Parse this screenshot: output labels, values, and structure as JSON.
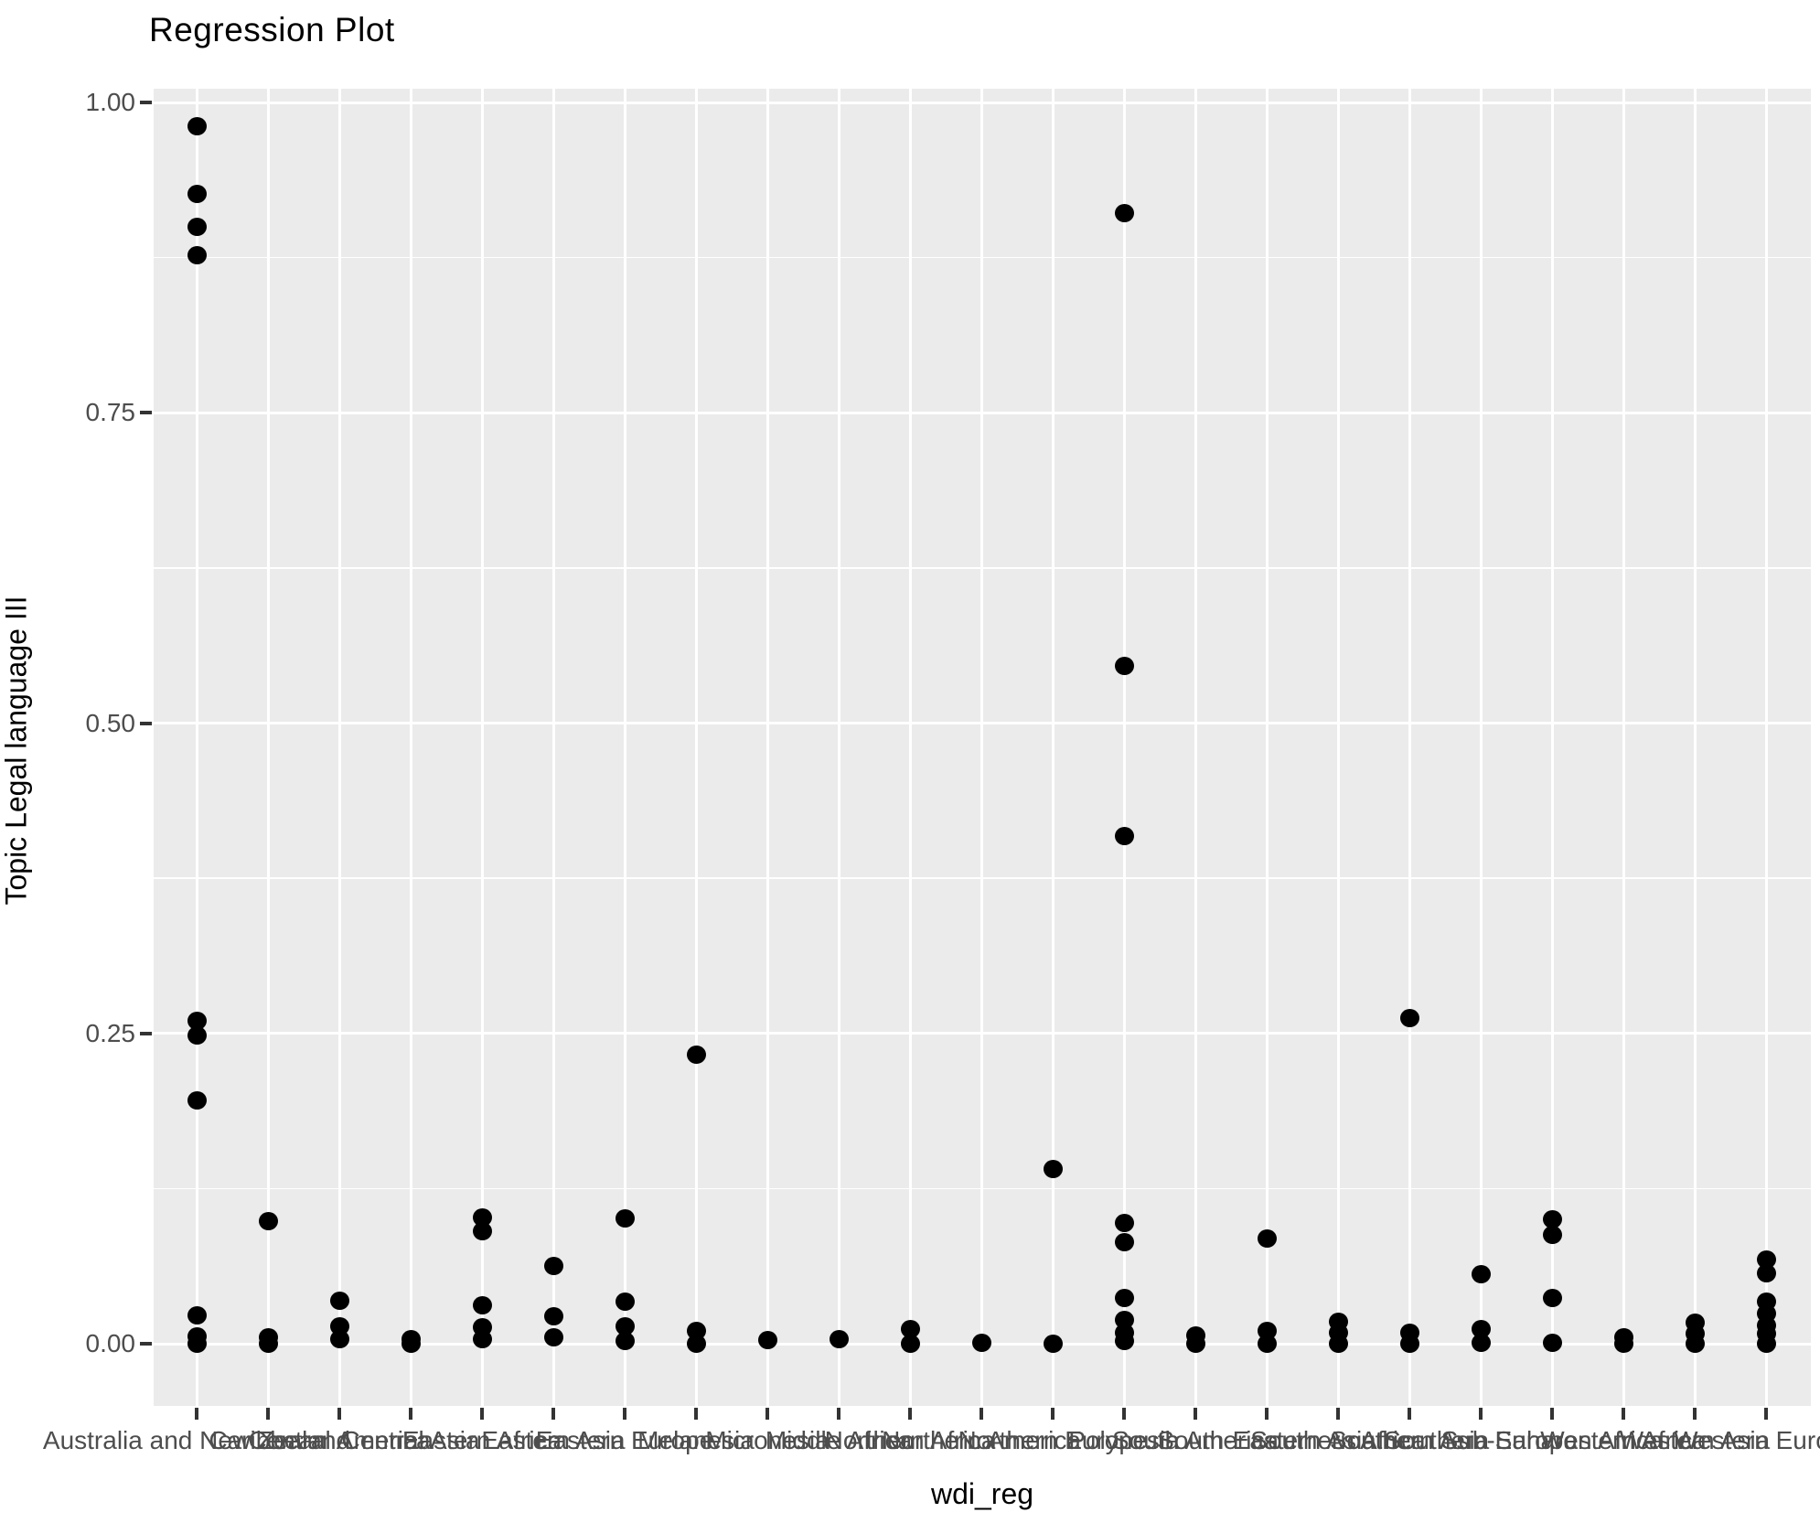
{
  "title": "Regression Plot",
  "y_axis": {
    "label": "Topic Legal language III"
  },
  "x_axis": {
    "label": "wdi_reg"
  },
  "style": {
    "panel_bg": "#EBEBEB",
    "grid_color": "#FFFFFF",
    "point_color": "#000000",
    "tick_text_color": "#4D4D4D",
    "tick_mark_color": "#333333",
    "title_color": "#000000"
  },
  "chart_data": {
    "type": "scatter",
    "title": "Regression Plot",
    "xlabel": "wdi_reg",
    "ylabel": "Topic Legal language III",
    "ylim": [
      -0.05,
      1.05
    ],
    "grid": "white major gridlines at labeled ticks plus minor gridlines at 0.125 steps on gray panel; vertical major gridline per category",
    "legend": "none",
    "yticks": [
      {
        "value": 1.0,
        "label": "1.00"
      },
      {
        "value": 0.75,
        "label": "0.75"
      },
      {
        "value": 0.5,
        "label": "0.50"
      },
      {
        "value": 0.25,
        "label": "0.25"
      },
      {
        "value": 0.0,
        "label": "0.00"
      }
    ],
    "minor_yticks": [
      0.875,
      0.625,
      0.375,
      0.125
    ],
    "categories": [
      {
        "label": "Australia and New Zealand",
        "values": [
          0.981,
          0.926,
          0.9,
          0.877,
          0.26,
          0.248,
          0.196,
          0.023,
          0.006,
          0.0
        ]
      },
      {
        "label": "Caribbean",
        "values": [
          0.099,
          0.005,
          0.0
        ]
      },
      {
        "label": "Central America",
        "values": [
          0.035,
          0.014,
          0.004
        ]
      },
      {
        "label": "Central Asia",
        "values": [
          0.004,
          0.0
        ]
      },
      {
        "label": "Eastern Africa",
        "values": [
          0.102,
          0.091,
          0.031,
          0.013,
          0.004
        ]
      },
      {
        "label": "Eastern Asia",
        "values": [
          0.063,
          0.022,
          0.005
        ]
      },
      {
        "label": "Eastern Europe",
        "values": [
          0.101,
          0.034,
          0.014,
          0.002
        ]
      },
      {
        "label": "Melanesia",
        "values": [
          0.233,
          0.01,
          0.0
        ]
      },
      {
        "label": "Micronesia",
        "values": [
          0.003
        ]
      },
      {
        "label": "Middle Africa",
        "values": [
          0.004
        ]
      },
      {
        "label": "Northern Africa",
        "values": [
          0.012,
          0.0
        ]
      },
      {
        "label": "Northern America",
        "values": [
          0.001
        ]
      },
      {
        "label": "Northern Europe",
        "values": [
          0.141,
          0.0
        ]
      },
      {
        "label": "Polynesia",
        "values": [
          0.911,
          0.546,
          0.409,
          0.097,
          0.082,
          0.037,
          0.019,
          0.009,
          0.002
        ]
      },
      {
        "label": "South America",
        "values": [
          0.007,
          0.0
        ]
      },
      {
        "label": "South-Eastern Asia",
        "values": [
          0.085,
          0.01,
          0.0
        ]
      },
      {
        "label": "Southern Africa",
        "values": [
          0.018,
          0.009,
          0.0
        ]
      },
      {
        "label": "Southern Asia",
        "values": [
          0.262,
          0.009,
          0.0
        ]
      },
      {
        "label": "Southern Europe",
        "values": [
          0.056,
          0.012,
          0.001
        ]
      },
      {
        "label": "Sub-Saharan Africa",
        "values": [
          0.1,
          0.088,
          0.037,
          0.001
        ]
      },
      {
        "label": "Western Africa",
        "values": [
          0.005,
          0.0
        ]
      },
      {
        "label": "Western Asia",
        "values": [
          0.017,
          0.008,
          0.0
        ]
      },
      {
        "label": "Western Europe",
        "values": [
          0.068,
          0.057,
          0.034,
          0.024,
          0.015,
          0.008,
          0.0
        ]
      }
    ]
  }
}
